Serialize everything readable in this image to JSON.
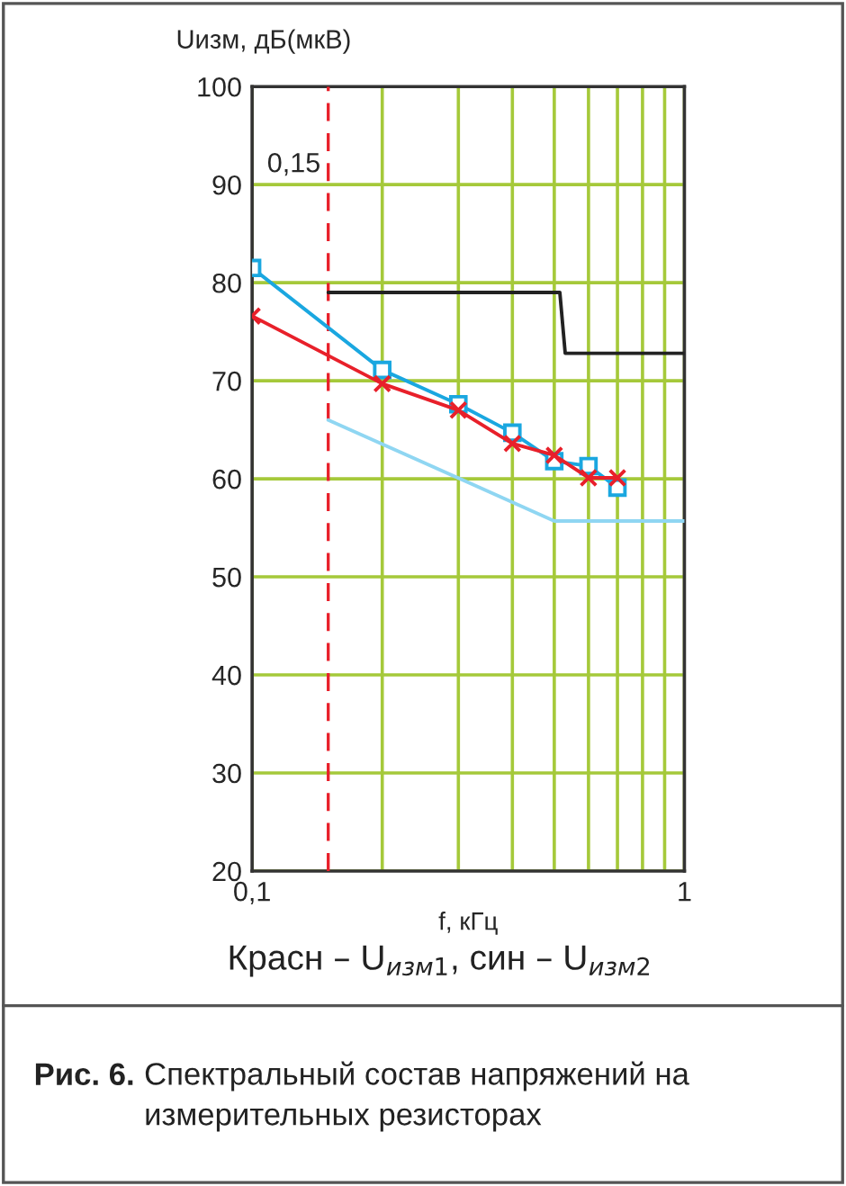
{
  "chart_data": {
    "type": "line",
    "ylabel": "Uизм, дБ(мкВ)",
    "xlabel": "f, кГц",
    "x": [
      0.1,
      0.2,
      0.3,
      0.4,
      0.5,
      0.6,
      0.7
    ],
    "series": [
      {
        "color": "#222222",
        "x": [
          0.15,
          0.515,
          0.53,
          1
        ],
        "values": [
          79,
          79,
          72.8,
          72.8
        ],
        "marker": "none"
      },
      {
        "color": "#8fd6f2",
        "x": [
          0.15,
          0.5,
          1
        ],
        "values": [
          66,
          55.7,
          55.7
        ],
        "marker": "none"
      },
      {
        "color": "#1aa7e0",
        "values": [
          81.5,
          71.1,
          67.6,
          64.7,
          61.8,
          61.3,
          59.1
        ],
        "marker": "square"
      },
      {
        "color": "#e8202a",
        "values": [
          76.6,
          69.7,
          67.0,
          63.6,
          62.4,
          60.1,
          60.1
        ],
        "marker": "cross"
      }
    ],
    "log": "x",
    "xlim": [
      0.1,
      1
    ],
    "xticks": [
      {
        "value": 0.1,
        "label": "0,1"
      },
      {
        "value": 0.2,
        "label": null
      },
      {
        "value": 0.3,
        "label": null
      },
      {
        "value": 0.4,
        "label": null
      },
      {
        "value": 0.5,
        "label": null
      },
      {
        "value": 0.6,
        "label": null
      },
      {
        "value": 0.7,
        "label": null
      },
      {
        "value": 0.8,
        "label": null
      },
      {
        "value": 0.9,
        "label": null
      },
      1
    ],
    "ylim": [
      20,
      100
    ],
    "yticks": [
      20,
      30,
      40,
      50,
      60,
      70,
      80,
      90,
      100
    ],
    "grid": true,
    "ref_lines": [
      {
        "axis": "x",
        "value": 0.15,
        "label": "0,15",
        "color": "#e8202a",
        "line_style": "dashed"
      }
    ],
    "annotations": [
      "Красн – U$_{изм1}$, син – U$_{изм2}$",
      "Рис. 6.",
      "Спектральный состав напряжений на измерительных резисторах"
    ]
  }
}
